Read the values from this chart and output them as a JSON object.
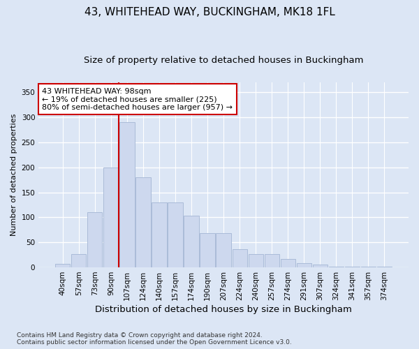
{
  "title": "43, WHITEHEAD WAY, BUCKINGHAM, MK18 1FL",
  "subtitle": "Size of property relative to detached houses in Buckingham",
  "xlabel": "Distribution of detached houses by size in Buckingham",
  "ylabel": "Number of detached properties",
  "footer_line1": "Contains HM Land Registry data © Crown copyright and database right 2024.",
  "footer_line2": "Contains public sector information licensed under the Open Government Licence v3.0.",
  "categories": [
    "40sqm",
    "57sqm",
    "73sqm",
    "90sqm",
    "107sqm",
    "124sqm",
    "140sqm",
    "157sqm",
    "174sqm",
    "190sqm",
    "207sqm",
    "224sqm",
    "240sqm",
    "257sqm",
    "274sqm",
    "291sqm",
    "307sqm",
    "324sqm",
    "341sqm",
    "357sqm",
    "374sqm"
  ],
  "values": [
    7,
    27,
    110,
    200,
    290,
    180,
    130,
    130,
    103,
    68,
    68,
    37,
    27,
    27,
    17,
    8,
    5,
    2,
    2,
    2,
    2
  ],
  "bar_color": "#cdd8ee",
  "bar_edge_color": "#aabbd8",
  "vline_x": 3.5,
  "vline_color": "#cc0000",
  "annotation_text": "43 WHITEHEAD WAY: 98sqm\n← 19% of detached houses are smaller (225)\n80% of semi-detached houses are larger (957) →",
  "annotation_box_color": "#ffffff",
  "annotation_box_edge_color": "#cc0000",
  "ylim": [
    0,
    370
  ],
  "yticks": [
    0,
    50,
    100,
    150,
    200,
    250,
    300,
    350
  ],
  "background_color": "#dce6f5",
  "axes_background_color": "#dce6f5",
  "grid_color": "#ffffff",
  "title_fontsize": 11,
  "subtitle_fontsize": 9.5,
  "xlabel_fontsize": 9.5,
  "ylabel_fontsize": 8,
  "tick_fontsize": 7.5,
  "annotation_fontsize": 8
}
